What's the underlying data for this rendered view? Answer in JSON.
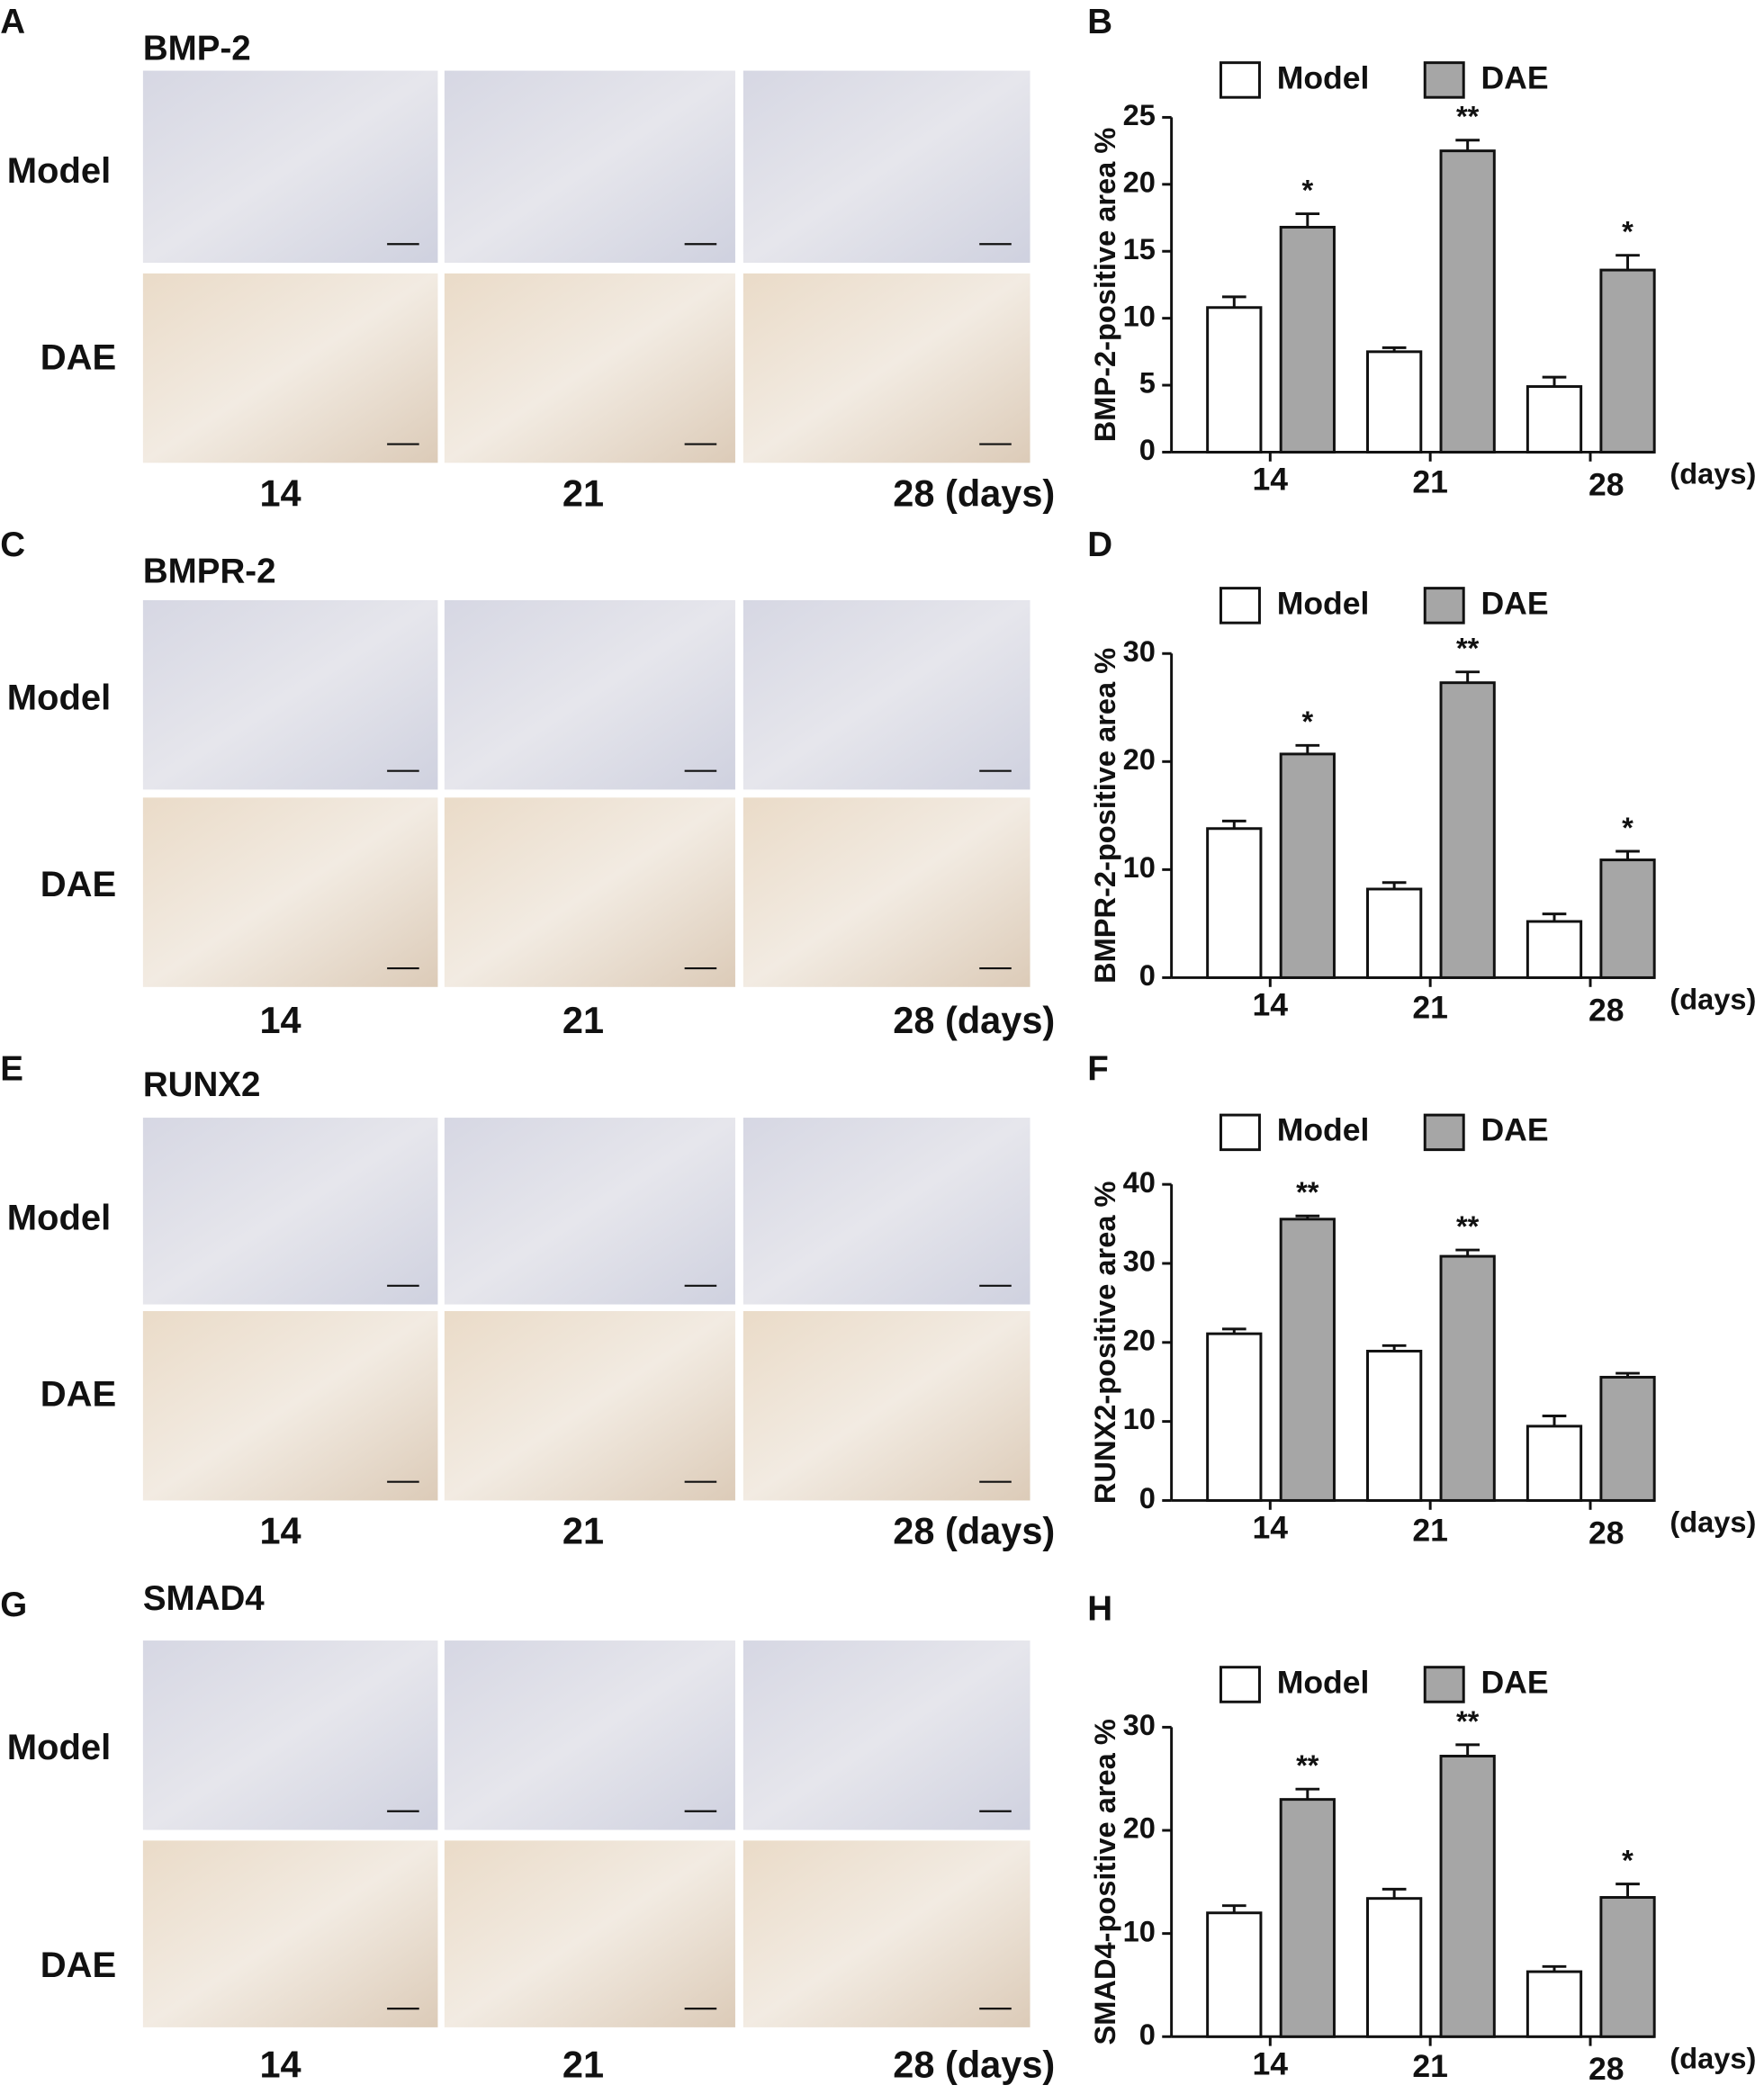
{
  "image_panels": [
    {
      "letter": "A",
      "title": "BMP-2",
      "row_labels": [
        "Model",
        "DAE"
      ],
      "column_labels": [
        "14",
        "21",
        "28 (days)"
      ]
    },
    {
      "letter": "C",
      "title": "BMPR-2",
      "row_labels": [
        "Model",
        "DAE"
      ],
      "column_labels": [
        "14",
        "21",
        "28 (days)"
      ]
    },
    {
      "letter": "E",
      "title": "RUNX2",
      "row_labels": [
        "Model",
        "DAE"
      ],
      "column_labels": [
        "14",
        "21",
        "28 (days)"
      ]
    },
    {
      "letter": "G",
      "title": "SMAD4",
      "row_labels": [
        "Model",
        "DAE"
      ],
      "column_labels": [
        "14",
        "21",
        "28 (days)"
      ]
    }
  ],
  "chart_data": [
    {
      "type": "bar",
      "letter": "B",
      "y_label": "BMP-2-positive area %",
      "x_unit": "(days)",
      "categories": [
        "14",
        "21",
        "28"
      ],
      "ylim": [
        0,
        25
      ],
      "yticks": [
        0,
        5,
        10,
        15,
        20,
        25
      ],
      "series": [
        {
          "name": "Model",
          "color": "#ffffff",
          "values": [
            10.8,
            7.5,
            4.9
          ],
          "errors": [
            0.8,
            0.3,
            0.7
          ]
        },
        {
          "name": "DAE",
          "color": "#a6a6a6",
          "values": [
            16.8,
            22.5,
            13.6
          ],
          "errors": [
            1.0,
            0.8,
            1.1
          ],
          "annotations": [
            "*",
            "**",
            "*"
          ]
        }
      ]
    },
    {
      "type": "bar",
      "letter": "D",
      "y_label": "BMPR-2-positive area %",
      "x_unit": "(days)",
      "categories": [
        "14",
        "21",
        "28"
      ],
      "ylim": [
        0,
        30
      ],
      "yticks": [
        0,
        10,
        20,
        30
      ],
      "series": [
        {
          "name": "Model",
          "color": "#ffffff",
          "values": [
            13.8,
            8.2,
            5.2
          ],
          "errors": [
            0.7,
            0.6,
            0.7
          ]
        },
        {
          "name": "DAE",
          "color": "#a6a6a6",
          "values": [
            20.7,
            27.3,
            10.9
          ],
          "errors": [
            0.8,
            1.0,
            0.8
          ],
          "annotations": [
            "*",
            "**",
            "*"
          ]
        }
      ]
    },
    {
      "type": "bar",
      "letter": "F",
      "y_label": "RUNX2-positive area %",
      "x_unit": "(days)",
      "categories": [
        "14",
        "21",
        "28"
      ],
      "ylim": [
        0,
        40
      ],
      "yticks": [
        0,
        10,
        20,
        30,
        40
      ],
      "series": [
        {
          "name": "Model",
          "color": "#ffffff",
          "values": [
            21.1,
            18.9,
            9.4
          ],
          "errors": [
            0.6,
            0.7,
            1.3
          ]
        },
        {
          "name": "DAE",
          "color": "#a6a6a6",
          "values": [
            35.6,
            30.9,
            15.6
          ],
          "errors": [
            0.4,
            0.8,
            0.5
          ],
          "annotations": [
            "**",
            "**",
            null
          ]
        }
      ]
    },
    {
      "type": "bar",
      "letter": "H",
      "y_label": "SMAD4-positive area %",
      "x_unit": "(days)",
      "categories": [
        "14",
        "21",
        "28"
      ],
      "ylim": [
        0,
        30
      ],
      "yticks": [
        0,
        10,
        20,
        30
      ],
      "series": [
        {
          "name": "Model",
          "color": "#ffffff",
          "values": [
            12.0,
            13.4,
            6.3
          ],
          "errors": [
            0.7,
            0.9,
            0.5
          ]
        },
        {
          "name": "DAE",
          "color": "#a6a6a6",
          "values": [
            23.0,
            27.2,
            13.5
          ],
          "errors": [
            1.0,
            1.1,
            1.3
          ],
          "annotations": [
            "**",
            "**",
            "*"
          ]
        }
      ]
    }
  ]
}
